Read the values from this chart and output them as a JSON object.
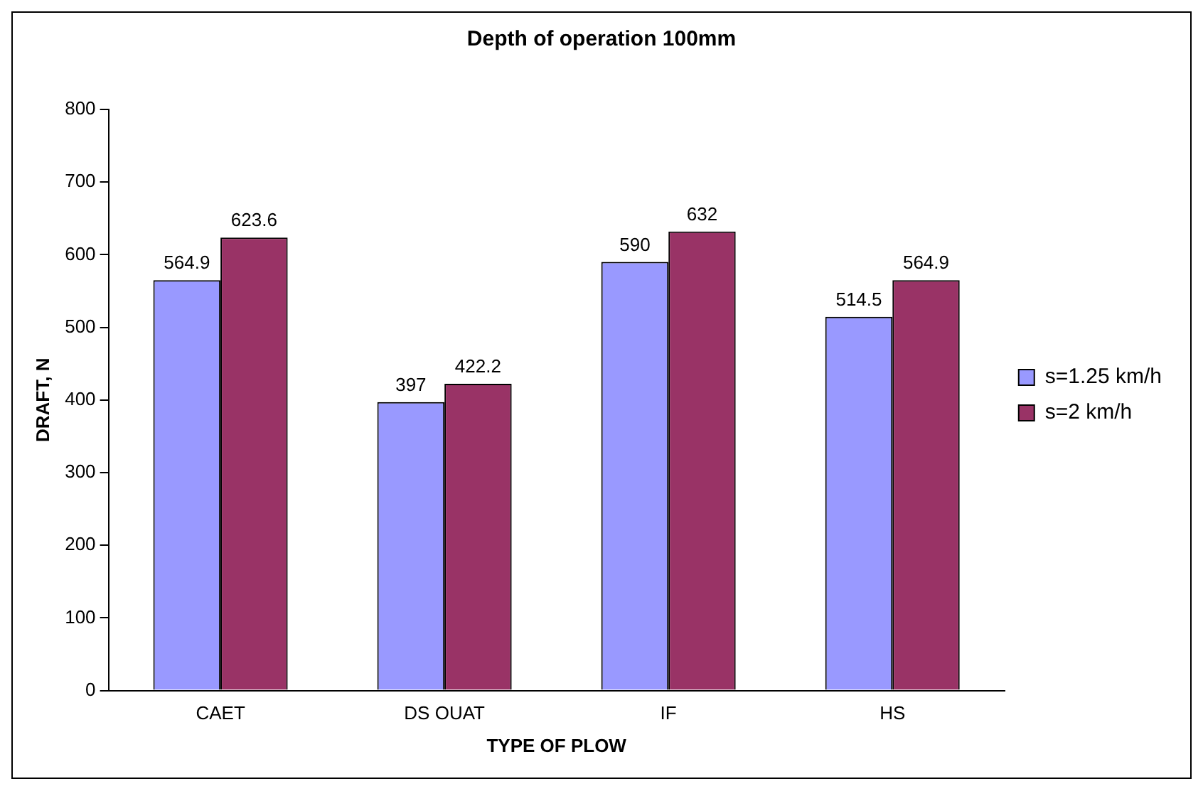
{
  "chart_data": {
    "type": "bar",
    "title": "Depth of operation 100mm",
    "xlabel": "TYPE OF PLOW",
    "ylabel": "DRAFT, N",
    "categories": [
      "CAET",
      "DS OUAT",
      "IF",
      "HS"
    ],
    "series": [
      {
        "name": "s=1.25 km/h",
        "color": "#9999ff",
        "values": [
          564.9,
          397,
          590,
          514.5
        ]
      },
      {
        "name": "s=2 km/h",
        "color": "#993366",
        "values": [
          623.6,
          422.2,
          632,
          564.9
        ]
      }
    ],
    "ylim": [
      0,
      800
    ],
    "yticks": [
      0,
      100,
      200,
      300,
      400,
      500,
      600,
      700,
      800
    ],
    "grid": false,
    "legend": "right",
    "data_labels": true
  }
}
